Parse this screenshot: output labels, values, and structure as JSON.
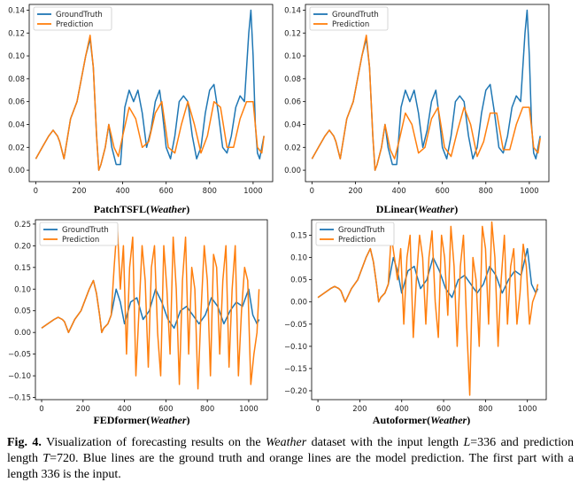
{
  "colors": {
    "ground_truth": "#1f77b4",
    "prediction": "#ff7f0e"
  },
  "chart_data": [
    {
      "type": "line",
      "caption_model": "PatchTSFL",
      "caption_dataset": "Weather",
      "xlim": [
        -30,
        1090
      ],
      "ylim": [
        -0.01,
        0.145
      ],
      "xticks": [
        0,
        200,
        400,
        600,
        800,
        1000
      ],
      "yticks": [
        "0.00",
        "0.02",
        "0.04",
        "0.06",
        "0.08",
        "0.10",
        "0.12",
        "0.14"
      ],
      "legend": [
        "GroundTruth",
        "Prediction"
      ],
      "legend_position": "top-left",
      "series": [
        {
          "name": "GroundTruth",
          "x": [
            0,
            30,
            60,
            80,
            100,
            110,
            130,
            160,
            190,
            230,
            250,
            265,
            280,
            290,
            300,
            320,
            336,
            350,
            370,
            390,
            410,
            430,
            450,
            470,
            490,
            510,
            530,
            550,
            570,
            580,
            600,
            620,
            640,
            660,
            680,
            700,
            720,
            740,
            760,
            780,
            800,
            820,
            840,
            860,
            880,
            900,
            920,
            940,
            960,
            980,
            990,
            1000,
            1010,
            1020,
            1030,
            1040,
            1050
          ],
          "y": [
            0.01,
            0.02,
            0.03,
            0.035,
            0.03,
            0.025,
            0.01,
            0.045,
            0.06,
            0.1,
            0.115,
            0.09,
            0.03,
            0.0,
            0.005,
            0.02,
            0.04,
            0.02,
            0.005,
            0.005,
            0.055,
            0.07,
            0.06,
            0.07,
            0.05,
            0.02,
            0.035,
            0.06,
            0.07,
            0.055,
            0.02,
            0.01,
            0.03,
            0.06,
            0.065,
            0.06,
            0.03,
            0.01,
            0.02,
            0.05,
            0.07,
            0.075,
            0.05,
            0.02,
            0.015,
            0.03,
            0.055,
            0.065,
            0.06,
            0.12,
            0.14,
            0.1,
            0.04,
            0.015,
            0.01,
            0.02,
            0.03
          ]
        },
        {
          "name": "Prediction",
          "x": [
            0,
            30,
            60,
            80,
            100,
            110,
            130,
            160,
            190,
            230,
            250,
            265,
            280,
            290,
            300,
            320,
            336,
            360,
            380,
            400,
            430,
            460,
            490,
            520,
            550,
            580,
            610,
            640,
            670,
            700,
            730,
            760,
            790,
            820,
            850,
            880,
            910,
            940,
            970,
            1000,
            1020,
            1040,
            1050
          ],
          "y": [
            0.01,
            0.02,
            0.03,
            0.035,
            0.03,
            0.025,
            0.01,
            0.045,
            0.06,
            0.1,
            0.118,
            0.09,
            0.03,
            0.0,
            0.005,
            0.02,
            0.04,
            0.02,
            0.012,
            0.03,
            0.055,
            0.045,
            0.02,
            0.025,
            0.05,
            0.06,
            0.02,
            0.015,
            0.04,
            0.06,
            0.04,
            0.015,
            0.03,
            0.06,
            0.055,
            0.02,
            0.02,
            0.045,
            0.06,
            0.06,
            0.02,
            0.015,
            0.03
          ]
        }
      ]
    },
    {
      "type": "line",
      "caption_model": "DLinear",
      "caption_dataset": "Weather",
      "xlim": [
        -30,
        1090
      ],
      "ylim": [
        -0.01,
        0.145
      ],
      "xticks": [
        0,
        200,
        400,
        600,
        800,
        1000
      ],
      "yticks": [
        "0.00",
        "0.02",
        "0.04",
        "0.06",
        "0.08",
        "0.10",
        "0.12",
        "0.14"
      ],
      "legend": [
        "GroundTruth",
        "Prediction"
      ],
      "legend_position": "top-left",
      "series": [
        {
          "name": "GroundTruth",
          "x": [
            0,
            30,
            60,
            80,
            100,
            110,
            130,
            160,
            190,
            230,
            250,
            265,
            280,
            290,
            300,
            320,
            336,
            350,
            370,
            390,
            410,
            430,
            450,
            470,
            490,
            510,
            530,
            550,
            570,
            580,
            600,
            620,
            640,
            660,
            680,
            700,
            720,
            740,
            760,
            780,
            800,
            820,
            840,
            860,
            880,
            900,
            920,
            940,
            960,
            980,
            990,
            1000,
            1010,
            1020,
            1030,
            1040,
            1050
          ],
          "y": [
            0.01,
            0.02,
            0.03,
            0.035,
            0.03,
            0.025,
            0.01,
            0.045,
            0.06,
            0.1,
            0.115,
            0.09,
            0.03,
            0.0,
            0.005,
            0.02,
            0.04,
            0.02,
            0.005,
            0.005,
            0.055,
            0.07,
            0.06,
            0.07,
            0.05,
            0.02,
            0.035,
            0.06,
            0.07,
            0.055,
            0.02,
            0.01,
            0.03,
            0.06,
            0.065,
            0.06,
            0.03,
            0.01,
            0.02,
            0.05,
            0.07,
            0.075,
            0.05,
            0.02,
            0.015,
            0.03,
            0.055,
            0.065,
            0.06,
            0.12,
            0.14,
            0.1,
            0.04,
            0.015,
            0.01,
            0.02,
            0.03
          ]
        },
        {
          "name": "Prediction",
          "x": [
            0,
            30,
            60,
            80,
            100,
            110,
            130,
            160,
            190,
            230,
            250,
            265,
            280,
            290,
            300,
            320,
            336,
            360,
            380,
            400,
            430,
            460,
            490,
            520,
            550,
            580,
            610,
            640,
            670,
            700,
            730,
            760,
            790,
            820,
            850,
            880,
            910,
            940,
            970,
            1000,
            1020,
            1040,
            1050
          ],
          "y": [
            0.01,
            0.02,
            0.03,
            0.035,
            0.03,
            0.025,
            0.01,
            0.045,
            0.06,
            0.1,
            0.118,
            0.09,
            0.03,
            0.0,
            0.005,
            0.02,
            0.04,
            0.018,
            0.01,
            0.025,
            0.05,
            0.04,
            0.015,
            0.02,
            0.045,
            0.055,
            0.02,
            0.012,
            0.035,
            0.055,
            0.04,
            0.012,
            0.025,
            0.05,
            0.05,
            0.018,
            0.018,
            0.04,
            0.055,
            0.055,
            0.02,
            0.015,
            0.028
          ]
        }
      ]
    },
    {
      "type": "line",
      "caption_model": "FEDformer",
      "caption_dataset": "Weather",
      "xlim": [
        -30,
        1090
      ],
      "ylim": [
        -0.155,
        0.26
      ],
      "xticks": [
        0,
        200,
        400,
        600,
        800,
        1000
      ],
      "yticks": [
        "−0.15",
        "−0.10",
        "−0.05",
        "0.00",
        "0.05",
        "0.10",
        "0.15",
        "0.20",
        "0.25"
      ],
      "legend": [
        "GroundTruth",
        "Prediction"
      ],
      "legend_position": "top-left",
      "series": [
        {
          "name": "GroundTruth",
          "x": [
            0,
            30,
            60,
            80,
            100,
            110,
            130,
            160,
            190,
            230,
            250,
            265,
            280,
            290,
            300,
            320,
            336,
            360,
            380,
            400,
            430,
            460,
            490,
            520,
            550,
            580,
            610,
            640,
            670,
            700,
            730,
            760,
            790,
            820,
            850,
            880,
            910,
            940,
            970,
            1000,
            1020,
            1040,
            1050
          ],
          "y": [
            0.01,
            0.02,
            0.03,
            0.035,
            0.03,
            0.025,
            0.0,
            0.03,
            0.05,
            0.1,
            0.12,
            0.09,
            0.04,
            0.0,
            0.01,
            0.02,
            0.04,
            0.1,
            0.07,
            0.02,
            0.07,
            0.08,
            0.03,
            0.05,
            0.1,
            0.07,
            0.03,
            0.01,
            0.05,
            0.06,
            0.04,
            0.02,
            0.04,
            0.08,
            0.06,
            0.02,
            0.05,
            0.07,
            0.06,
            0.1,
            0.04,
            0.02,
            0.03
          ]
        },
        {
          "name": "Prediction",
          "x": [
            0,
            30,
            60,
            80,
            100,
            110,
            130,
            160,
            190,
            230,
            250,
            265,
            280,
            290,
            300,
            320,
            336,
            350,
            365,
            380,
            395,
            410,
            425,
            440,
            455,
            470,
            485,
            500,
            515,
            530,
            545,
            560,
            575,
            590,
            605,
            620,
            635,
            650,
            665,
            680,
            695,
            710,
            725,
            740,
            755,
            770,
            785,
            800,
            815,
            830,
            845,
            860,
            875,
            890,
            905,
            920,
            935,
            950,
            965,
            980,
            995,
            1010,
            1025,
            1040,
            1050
          ],
          "y": [
            0.01,
            0.02,
            0.03,
            0.035,
            0.03,
            0.025,
            0.0,
            0.03,
            0.05,
            0.1,
            0.12,
            0.09,
            0.04,
            0.0,
            0.01,
            0.02,
            0.04,
            0.15,
            0.25,
            0.1,
            0.2,
            -0.05,
            0.15,
            0.22,
            -0.1,
            0.05,
            0.2,
            0.12,
            -0.08,
            0.15,
            0.2,
            0.0,
            -0.1,
            0.2,
            0.1,
            -0.05,
            0.22,
            0.1,
            -0.12,
            0.12,
            0.22,
            -0.05,
            0.15,
            0.1,
            -0.13,
            0.05,
            0.2,
            0.12,
            -0.1,
            0.18,
            0.15,
            -0.05,
            0.12,
            0.2,
            -0.08,
            0.1,
            0.2,
            -0.1,
            0.05,
            0.15,
            0.12,
            -0.12,
            -0.05,
            0.0,
            0.1
          ]
        }
      ]
    },
    {
      "type": "line",
      "caption_model": "Autoformer",
      "caption_dataset": "Weather",
      "xlim": [
        -30,
        1090
      ],
      "ylim": [
        -0.22,
        0.185
      ],
      "xticks": [
        0,
        200,
        400,
        600,
        800,
        1000
      ],
      "yticks": [
        "−0.20",
        "−0.15",
        "−0.10",
        "−0.05",
        "0.00",
        "0.05",
        "0.10",
        "0.15"
      ],
      "legend": [
        "GroundTruth",
        "Prediction"
      ],
      "legend_position": "top-left",
      "series": [
        {
          "name": "GroundTruth",
          "x": [
            0,
            30,
            60,
            80,
            100,
            110,
            130,
            160,
            190,
            230,
            250,
            265,
            280,
            290,
            300,
            320,
            336,
            360,
            380,
            400,
            430,
            460,
            490,
            520,
            550,
            580,
            610,
            640,
            670,
            700,
            730,
            760,
            790,
            820,
            850,
            880,
            910,
            940,
            970,
            1000,
            1020,
            1040,
            1050
          ],
          "y": [
            0.01,
            0.02,
            0.03,
            0.035,
            0.03,
            0.025,
            0.0,
            0.03,
            0.05,
            0.1,
            0.12,
            0.09,
            0.04,
            0.0,
            0.01,
            0.02,
            0.04,
            0.1,
            0.07,
            0.02,
            0.07,
            0.08,
            0.03,
            0.05,
            0.1,
            0.07,
            0.03,
            0.01,
            0.05,
            0.06,
            0.04,
            0.02,
            0.04,
            0.08,
            0.06,
            0.02,
            0.05,
            0.07,
            0.06,
            0.12,
            0.04,
            0.02,
            0.03
          ]
        },
        {
          "name": "Prediction",
          "x": [
            0,
            30,
            60,
            80,
            100,
            110,
            130,
            160,
            190,
            230,
            250,
            265,
            280,
            290,
            300,
            320,
            336,
            350,
            365,
            380,
            395,
            410,
            425,
            440,
            455,
            470,
            485,
            500,
            515,
            530,
            545,
            560,
            575,
            590,
            605,
            620,
            635,
            650,
            665,
            680,
            695,
            710,
            725,
            740,
            755,
            770,
            785,
            800,
            815,
            830,
            845,
            860,
            875,
            890,
            905,
            920,
            935,
            950,
            965,
            980,
            995,
            1010,
            1025,
            1040,
            1050
          ],
          "y": [
            0.01,
            0.02,
            0.03,
            0.035,
            0.03,
            0.025,
            0.0,
            0.03,
            0.05,
            0.1,
            0.12,
            0.09,
            0.04,
            0.0,
            0.01,
            0.02,
            0.04,
            0.15,
            0.1,
            0.05,
            0.12,
            -0.05,
            0.1,
            0.15,
            -0.08,
            0.05,
            0.15,
            0.1,
            -0.05,
            0.1,
            0.16,
            0.0,
            -0.08,
            0.15,
            0.1,
            -0.03,
            0.17,
            0.08,
            -0.1,
            0.08,
            0.15,
            -0.05,
            -0.21,
            0.1,
            0.05,
            -0.1,
            0.17,
            0.12,
            -0.05,
            0.18,
            0.1,
            -0.1,
            0.05,
            0.15,
            -0.05,
            0.08,
            0.12,
            -0.05,
            0.02,
            0.13,
            0.08,
            -0.05,
            0.0,
            0.02,
            0.04
          ]
        }
      ]
    }
  ],
  "caption": {
    "label": "Fig. 4.",
    "text_1": " Visualization of forecasting results on the ",
    "dataset": "Weather",
    "text_2": " dataset with the input length ",
    "L": "L",
    "text_3": "=336 and prediction length ",
    "T": "T",
    "text_4": "=720. Blue lines are the ground truth and orange lines are the model prediction. The first part with a length 336 is the input."
  }
}
